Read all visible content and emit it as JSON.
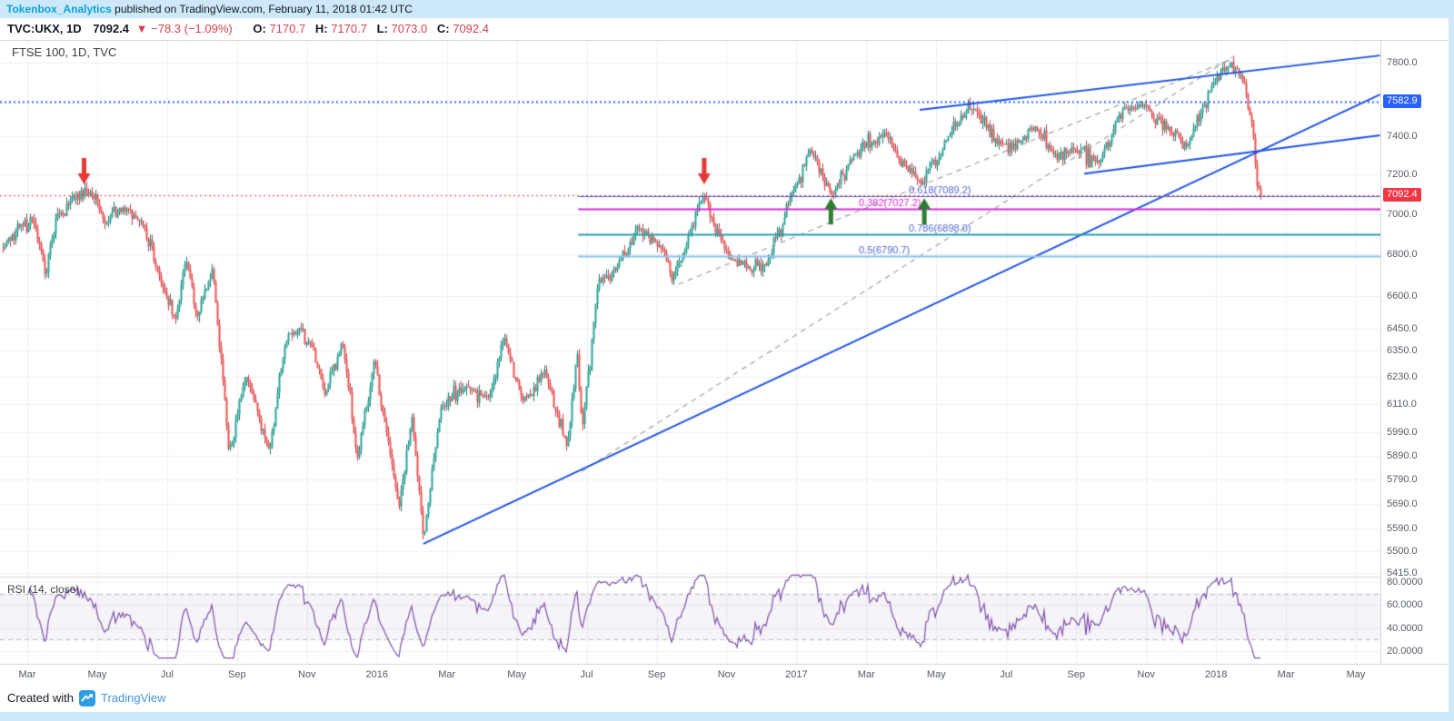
{
  "banner": {
    "author": "Tokenbox_Analytics",
    "publish_info": " published on TradingView.com, February 11, 2018 01:42 UTC"
  },
  "symbol_bar": {
    "symbol": "TVC:UKX, 1D",
    "price": "7092.4",
    "change": "▼ −78.3 (−1.09%)",
    "o_label": "O:",
    "o": "7170.7",
    "h_label": "H:",
    "h": "7170.7",
    "l_label": "L:",
    "l": "7073.0",
    "c_label": "C:",
    "c": "7092.4"
  },
  "chart": {
    "legend": "FTSE 100, 1D, TVC",
    "rsi_legend": "RSI (14, close)"
  },
  "footer": {
    "created_with": "Created with",
    "brand": "TradingView"
  },
  "chart_data": {
    "type": "candlestick",
    "title": "FTSE 100, 1D, TVC",
    "symbol": "TVC:UKX",
    "interval": "1D",
    "price_scale": "log",
    "last_bar": {
      "open": 7170.7,
      "high": 7170.7,
      "low": 7073.0,
      "close": 7092.4,
      "change": -78.3,
      "change_pct": -1.09
    },
    "up_color": "#26a69a",
    "down_color": "#ef5350",
    "price_axis_ticks": [
      {
        "label": "7800.0",
        "value": 7800
      },
      {
        "label": "7400.0",
        "value": 7400
      },
      {
        "label": "7200.0",
        "value": 7200
      },
      {
        "label": "7000.0",
        "value": 7000
      },
      {
        "label": "6800.0",
        "value": 6800
      },
      {
        "label": "6600.0",
        "value": 6600
      },
      {
        "label": "6450.0",
        "value": 6450
      },
      {
        "label": "6350.0",
        "value": 6350
      },
      {
        "label": "6230.0",
        "value": 6230
      },
      {
        "label": "6110.0",
        "value": 6110
      },
      {
        "label": "5990.0",
        "value": 5990
      },
      {
        "label": "5890.0",
        "value": 5890
      },
      {
        "label": "5790.0",
        "value": 5790
      },
      {
        "label": "5690.0",
        "value": 5690
      },
      {
        "label": "5590.0",
        "value": 5590
      },
      {
        "label": "5500.0",
        "value": 5500
      },
      {
        "label": "5415.0",
        "value": 5415
      }
    ],
    "price_tags": [
      {
        "label": "7582.9",
        "value": 7582.9,
        "color": "#2962ff",
        "width": 2
      },
      {
        "label": "7092.4",
        "value": 7092.4,
        "color": "#f23645",
        "width": 1
      }
    ],
    "time_ticks": [
      {
        "label": "Mar",
        "date": "2015-03-01"
      },
      {
        "label": "May",
        "date": "2015-05-01"
      },
      {
        "label": "Jul",
        "date": "2015-07-01"
      },
      {
        "label": "Sep",
        "date": "2015-09-01"
      },
      {
        "label": "Nov",
        "date": "2015-11-01"
      },
      {
        "label": "2016",
        "date": "2016-01-01"
      },
      {
        "label": "Mar",
        "date": "2016-03-01"
      },
      {
        "label": "May",
        "date": "2016-05-01"
      },
      {
        "label": "Jul",
        "date": "2016-07-01"
      },
      {
        "label": "Sep",
        "date": "2016-09-01"
      },
      {
        "label": "Nov",
        "date": "2016-11-01"
      },
      {
        "label": "2017",
        "date": "2017-01-01"
      },
      {
        "label": "Mar",
        "date": "2017-03-01"
      },
      {
        "label": "May",
        "date": "2017-05-01"
      },
      {
        "label": "Jul",
        "date": "2017-07-01"
      },
      {
        "label": "Sep",
        "date": "2017-09-01"
      },
      {
        "label": "Nov",
        "date": "2017-11-01"
      },
      {
        "label": "2018",
        "date": "2018-01-01"
      },
      {
        "label": "Mar",
        "date": "2018-03-01"
      },
      {
        "label": "May",
        "date": "2018-05-01"
      }
    ],
    "series_anchors": [
      [
        "2015-02-10",
        6830
      ],
      [
        "2015-02-26",
        6950
      ],
      [
        "2015-03-06",
        6960
      ],
      [
        "2015-03-17",
        6700
      ],
      [
        "2015-03-26",
        6990
      ],
      [
        "2015-04-10",
        7090
      ],
      [
        "2015-04-27",
        7104
      ],
      [
        "2015-05-07",
        6950
      ],
      [
        "2015-05-27",
        7030
      ],
      [
        "2015-06-10",
        6950
      ],
      [
        "2015-06-29",
        6620
      ],
      [
        "2015-07-08",
        6490
      ],
      [
        "2015-07-17",
        6775
      ],
      [
        "2015-07-27",
        6505
      ],
      [
        "2015-08-10",
        6736
      ],
      [
        "2015-08-24",
        5898
      ],
      [
        "2015-09-01",
        6060
      ],
      [
        "2015-09-09",
        6229
      ],
      [
        "2015-09-29",
        5909
      ],
      [
        "2015-10-12",
        6371
      ],
      [
        "2015-10-23",
        6444
      ],
      [
        "2015-11-06",
        6353
      ],
      [
        "2015-11-16",
        6146
      ],
      [
        "2015-12-01",
        6395
      ],
      [
        "2015-12-14",
        5874
      ],
      [
        "2015-12-29",
        6315
      ],
      [
        "2016-01-06",
        6073
      ],
      [
        "2016-01-20",
        5673
      ],
      [
        "2016-02-01",
        6060
      ],
      [
        "2016-02-11",
        5537
      ],
      [
        "2016-02-26",
        6096
      ],
      [
        "2016-03-18",
        6190
      ],
      [
        "2016-04-07",
        6137
      ],
      [
        "2016-04-20",
        6410
      ],
      [
        "2016-05-06",
        6126
      ],
      [
        "2016-05-25",
        6262
      ],
      [
        "2016-06-14",
        5923
      ],
      [
        "2016-06-23",
        6338
      ],
      [
        "2016-06-27",
        5982
      ],
      [
        "2016-07-11",
        6682
      ],
      [
        "2016-07-26",
        6724
      ],
      [
        "2016-08-15",
        6941
      ],
      [
        "2016-09-06",
        6826
      ],
      [
        "2016-09-14",
        6673
      ],
      [
        "2016-10-11",
        7097
      ],
      [
        "2016-11-03",
        6790
      ],
      [
        "2016-11-14",
        6753
      ],
      [
        "2016-12-05",
        6746
      ],
      [
        "2016-12-30",
        7142
      ],
      [
        "2017-01-13",
        7337
      ],
      [
        "2017-01-31",
        7099
      ],
      [
        "2017-02-20",
        7300
      ],
      [
        "2017-03-17",
        7424
      ],
      [
        "2017-03-27",
        7293
      ],
      [
        "2017-04-18",
        7147
      ],
      [
        "2017-05-10",
        7385
      ],
      [
        "2017-05-25",
        7517
      ],
      [
        "2017-06-02",
        7547
      ],
      [
        "2017-06-29",
        7350
      ],
      [
        "2017-07-14",
        7378
      ],
      [
        "2017-07-26",
        7452
      ],
      [
        "2017-08-11",
        7310
      ],
      [
        "2017-08-29",
        7337
      ],
      [
        "2017-09-21",
        7263
      ],
      [
        "2017-10-12",
        7556
      ],
      [
        "2017-11-02",
        7555
      ],
      [
        "2017-11-22",
        7419
      ],
      [
        "2017-12-06",
        7348
      ],
      [
        "2017-12-29",
        7688
      ],
      [
        "2018-01-12",
        7779
      ],
      [
        "2018-01-22",
        7730
      ],
      [
        "2018-01-26",
        7666
      ],
      [
        "2018-02-02",
        7443
      ],
      [
        "2018-02-06",
        7141
      ],
      [
        "2018-02-09",
        7092
      ]
    ],
    "trendlines": [
      {
        "p1": [
          "2016-02-11",
          5529
        ],
        "p2": [
          "2018-05-22",
          7624
        ],
        "color": "#1e53e5",
        "width": 2
      },
      {
        "p1": [
          "2017-04-17",
          7541
        ],
        "p2": [
          "2018-05-22",
          7840
        ],
        "color": "#1e53e5",
        "width": 2
      },
      {
        "p1": [
          "2017-09-08",
          7205
        ],
        "p2": [
          "2018-05-22",
          7405
        ],
        "color": "#1e53e5",
        "width": 2
      }
    ],
    "dashed_trendlines": [
      {
        "p1": [
          "2016-06-27",
          5823
        ],
        "p2": [
          "2018-01-15",
          7830
        ],
        "color": "#a0a4ab"
      },
      {
        "p1": [
          "2016-09-20",
          6657
        ],
        "p2": [
          "2018-01-15",
          7820
        ],
        "color": "#a0a4ab"
      }
    ],
    "fib": {
      "start_date": "2016-06-24",
      "levels": [
        {
          "ratio": 0.618,
          "value": 7089.2,
          "label": "0.618(7089.2)",
          "text_color": "#5468cf",
          "line_color": "#5468cf",
          "width": 1
        },
        {
          "ratio": 0.382,
          "value": 7027.2,
          "label": "0.382(7027.2)",
          "text_color": "#e026e0",
          "line_color": "#e026e0",
          "width": 2
        },
        {
          "ratio": 0.786,
          "value": 6898.0,
          "label": "0.786(6898.0)",
          "text_color": "#5468cf",
          "line_color": "#2b9fae",
          "width": 2
        },
        {
          "ratio": 0.5,
          "value": 6790.7,
          "label": "0.5(6790.7)",
          "text_color": "#5468cf",
          "line_color": "#86c5f0",
          "width": 2
        }
      ]
    },
    "arrows": [
      {
        "direction": "down",
        "date": "2015-04-20",
        "price": 7150,
        "color": "#e53935"
      },
      {
        "direction": "down",
        "date": "2016-10-12",
        "price": 7150,
        "color": "#e53935"
      },
      {
        "direction": "up",
        "date": "2017-01-31",
        "price": 7080,
        "color": "#2f7d32"
      },
      {
        "direction": "up",
        "date": "2017-04-21",
        "price": 7080,
        "color": "#2f7d32"
      }
    ],
    "rsi": {
      "label": "RSI (14, close)",
      "period": 14,
      "color": "#7b52ab",
      "ticks": [
        {
          "label": "80.0000",
          "value": 80
        },
        {
          "label": "60.0000",
          "value": 60
        },
        {
          "label": "40.0000",
          "value": 40
        },
        {
          "label": "20.0000",
          "value": 20
        }
      ],
      "bands": [
        70,
        30
      ]
    }
  }
}
